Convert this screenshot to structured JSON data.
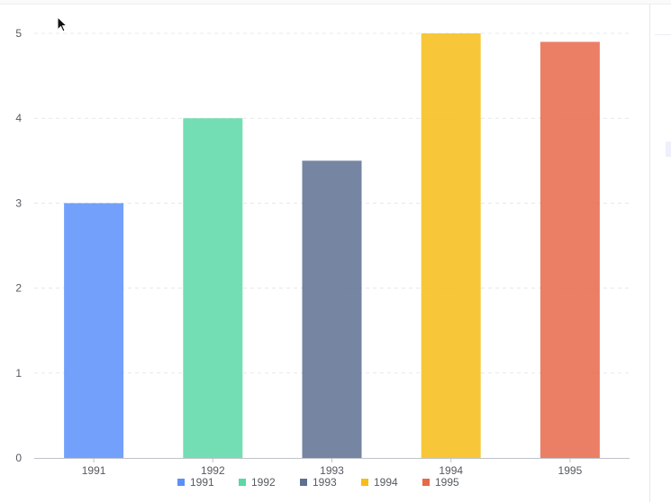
{
  "chart_data": {
    "type": "bar",
    "title": "",
    "xlabel": "",
    "ylabel": "",
    "categories": [
      "1991",
      "1992",
      "1993",
      "1994",
      "1995"
    ],
    "values": [
      3,
      4,
      3.5,
      5,
      4.9
    ],
    "colors": [
      "#5b8ff9",
      "#5ad8a6",
      "#5d7092",
      "#f6bd16",
      "#e8684a"
    ],
    "ylim": [
      0,
      5
    ],
    "yticks": [
      "0",
      "1",
      "2",
      "3",
      "4",
      "5"
    ],
    "grid": true,
    "legend_position": "bottom",
    "legend": [
      "1991",
      "1992",
      "1993",
      "1994",
      "1995"
    ]
  }
}
